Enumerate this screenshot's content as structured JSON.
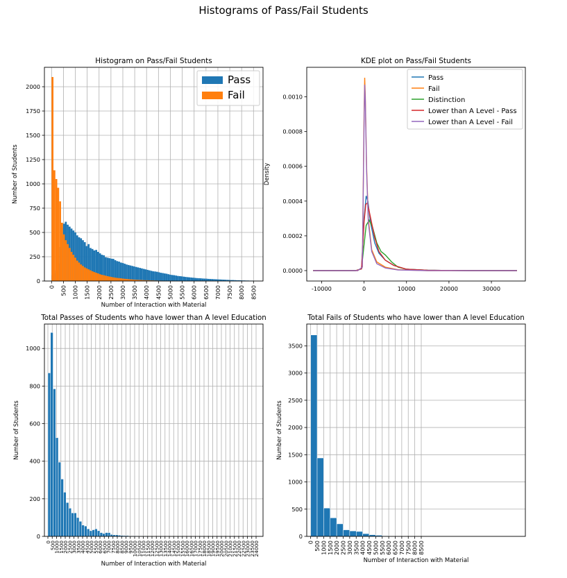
{
  "figure": {
    "suptitle": "Histograms of Pass/Fail Students"
  },
  "colors": {
    "pass": "#1f77b4",
    "fail": "#ff7f0e",
    "distinction": "#2ca02c",
    "lower_pass": "#d62728",
    "lower_fail": "#9467bd",
    "grid": "#b0b0b0"
  },
  "chart_data": [
    {
      "type": "bar",
      "title": "Histogram on Pass/Fail Students",
      "xlabel": "Number of Interaction with Material",
      "ylabel": "Number of Students",
      "xlim": [
        -300,
        8900
      ],
      "ylim": [
        0,
        2200
      ],
      "bin_width": 80,
      "xticks": [
        0,
        500,
        1000,
        1500,
        2000,
        2500,
        3000,
        3500,
        4000,
        4500,
        5000,
        5500,
        6000,
        6500,
        7000,
        7500,
        8000,
        8500
      ],
      "yticks": [
        0,
        250,
        500,
        750,
        1000,
        1250,
        1500,
        1750,
        2000
      ],
      "legend": {
        "location": "upper right",
        "entries": [
          "Pass",
          "Fail"
        ]
      },
      "grid": true,
      "series": [
        {
          "name": "Pass",
          "x": [
            0,
            80,
            160,
            240,
            320,
            400,
            480,
            560,
            640,
            720,
            800,
            880,
            960,
            1040,
            1120,
            1200,
            1280,
            1360,
            1440,
            1520,
            1600,
            1680,
            1760,
            1840,
            1920,
            2000,
            2080,
            2160,
            2240,
            2320,
            2400,
            2480,
            2560,
            2640,
            2720,
            2800,
            2880,
            2960,
            3040,
            3120,
            3200,
            3280,
            3360,
            3440,
            3520,
            3600,
            3680,
            3760,
            3840,
            3920,
            4000,
            4080,
            4160,
            4240,
            4320,
            4400,
            4480,
            4560,
            4640,
            4720,
            4800,
            4880,
            4960,
            5040,
            5120,
            5200,
            5280,
            5360,
            5440,
            5520,
            5600,
            5680,
            5760,
            5840,
            5920,
            6000,
            6080,
            6160,
            6240,
            6320,
            6400,
            6480,
            6560,
            6640,
            6720,
            6800,
            6880,
            6960,
            7040,
            7120,
            7200,
            7280,
            7360,
            7440,
            7520,
            7600,
            7680,
            7760,
            7840,
            7920,
            8000,
            8080,
            8160,
            8240,
            8320,
            8400,
            8480,
            8560,
            8640
          ],
          "values": [
            60,
            80,
            110,
            180,
            350,
            550,
            590,
            610,
            580,
            560,
            540,
            520,
            500,
            470,
            450,
            440,
            420,
            400,
            360,
            380,
            340,
            330,
            315,
            320,
            300,
            285,
            270,
            265,
            245,
            240,
            235,
            230,
            228,
            215,
            205,
            200,
            190,
            185,
            178,
            170,
            165,
            160,
            155,
            150,
            145,
            140,
            135,
            130,
            125,
            120,
            115,
            110,
            105,
            100,
            98,
            95,
            90,
            85,
            82,
            78,
            75,
            70,
            65,
            62,
            60,
            56,
            52,
            50,
            48,
            45,
            42,
            40,
            38,
            36,
            34,
            32,
            30,
            29,
            28,
            26,
            25,
            24,
            22,
            21,
            20,
            19,
            18,
            17,
            16,
            15,
            14,
            13,
            12,
            11,
            10,
            10,
            9,
            8,
            8,
            7,
            6,
            6,
            5,
            5,
            4,
            4,
            3,
            3,
            2
          ]
        },
        {
          "name": "Fail",
          "x": [
            0,
            80,
            160,
            240,
            320,
            400,
            480,
            560,
            640,
            720,
            800,
            880,
            960,
            1040,
            1120,
            1200,
            1280,
            1360,
            1440,
            1520,
            1600,
            1680,
            1760,
            1840,
            1920,
            2000,
            2080,
            2160,
            2240,
            2320,
            2400,
            2480,
            2560,
            2640,
            2720,
            2800,
            2880,
            2960,
            3040,
            3120,
            3200,
            3280,
            3360,
            3440,
            3520,
            3600,
            3680,
            3760,
            3840,
            3920,
            4000,
            4080,
            4160,
            4240,
            4320,
            4400,
            4480,
            4560,
            4640,
            4720,
            4800,
            4880,
            4960,
            5040,
            5120
          ],
          "values": [
            2100,
            1140,
            1050,
            960,
            820,
            600,
            480,
            420,
            380,
            340,
            300,
            270,
            240,
            210,
            190,
            170,
            155,
            140,
            130,
            120,
            110,
            100,
            92,
            85,
            78,
            70,
            64,
            60,
            55,
            50,
            46,
            42,
            38,
            35,
            32,
            30,
            28,
            25,
            23,
            21,
            19,
            17,
            16,
            14,
            13,
            12,
            11,
            10,
            9,
            8,
            8,
            7,
            6,
            6,
            5,
            5,
            4,
            4,
            3,
            3,
            3,
            2,
            2,
            2,
            2
          ]
        }
      ]
    },
    {
      "type": "line",
      "title": "KDE plot on Pass/Fail Students",
      "xlabel": "",
      "ylabel": "Density",
      "xlim": [
        -13500,
        38000
      ],
      "ylim": [
        -6e-05,
        0.00117
      ],
      "xticks": [
        -10000,
        0,
        10000,
        20000,
        30000
      ],
      "yticks": [
        0.0,
        0.0002,
        0.0004,
        0.0006,
        0.0008,
        0.001
      ],
      "ytick_labels": [
        "0.0000",
        "0.0002",
        "0.0004",
        "0.0006",
        "0.0008",
        "0.0010"
      ],
      "legend": {
        "location": "upper right",
        "entries": [
          "Pass",
          "Fail",
          "Distinction",
          "Lower than A Level - Pass",
          "Lower than A Level - Fail"
        ]
      },
      "grid": false,
      "series": [
        {
          "name": "Pass",
          "x": [
            -12000,
            -2000,
            -600,
            0,
            500,
            900,
            1500,
            2500,
            3500,
            5000,
            7000,
            10000,
            15000,
            25000,
            36000
          ],
          "values": [
            0,
            0,
            1e-05,
            0.0003,
            0.00043,
            0.0004,
            0.00028,
            0.00016,
            0.0001,
            6e-05,
            3e-05,
            8e-06,
            2e-06,
            0,
            0
          ]
        },
        {
          "name": "Fail",
          "x": [
            -12000,
            -1500,
            -400,
            0,
            150,
            300,
            600,
            1000,
            1800,
            3000,
            5000,
            8000,
            15000,
            25000,
            36000
          ],
          "values": [
            0,
            0,
            2e-05,
            0.0009,
            0.00111,
            0.001,
            0.0006,
            0.0003,
            0.00012,
            5e-05,
            2e-05,
            5e-06,
            0,
            0,
            0
          ]
        },
        {
          "name": "Distinction",
          "x": [
            -12000,
            -2000,
            -600,
            0,
            500,
            1200,
            2000,
            3000,
            4000,
            5000,
            6500,
            8000,
            10000,
            15000,
            25000,
            36000
          ],
          "values": [
            0,
            0,
            1e-05,
            0.00015,
            0.00026,
            0.00029,
            0.00025,
            0.00016,
            0.00011,
            9e-05,
            5e-05,
            2e-05,
            8e-06,
            2e-06,
            0,
            0
          ]
        },
        {
          "name": "Lower than A Level - Pass",
          "x": [
            -12000,
            -2000,
            -600,
            0,
            400,
            800,
            1400,
            2500,
            3500,
            5000,
            7000,
            10000,
            15000,
            25000,
            36000
          ],
          "values": [
            0,
            0,
            1e-05,
            0.00028,
            0.00038,
            0.00039,
            0.00032,
            0.00019,
            0.00011,
            6e-05,
            3e-05,
            8e-06,
            2e-06,
            0,
            0
          ]
        },
        {
          "name": "Lower than A Level - Fail",
          "x": [
            -12000,
            -1500,
            -400,
            0,
            150,
            300,
            600,
            1000,
            1800,
            3000,
            5000,
            8000,
            15000,
            25000,
            36000
          ],
          "values": [
            0,
            0,
            2e-05,
            0.00085,
            0.00107,
            0.00098,
            0.00058,
            0.00028,
            0.00011,
            4e-05,
            1.5e-05,
            4e-06,
            0,
            0,
            0
          ]
        }
      ]
    },
    {
      "type": "bar",
      "title": "Total Passes of Students who have lower than A level Education",
      "xlabel": "Number of Interaction with Material",
      "ylabel": "Number of Students",
      "xlim": [
        -400,
        24800
      ],
      "ylim": [
        0,
        1130
      ],
      "bin_width": 300,
      "xticks": [
        0,
        500,
        1000,
        1500,
        2000,
        2500,
        3000,
        3500,
        4000,
        4500,
        5000,
        5500,
        6000,
        6500,
        7000,
        7500,
        8000,
        8500,
        9000,
        9500,
        10000,
        10500,
        11000,
        11500,
        12000,
        12500,
        13000,
        13500,
        14000,
        14500,
        15000,
        15500,
        16000,
        16500,
        17000,
        17500,
        18000,
        18500,
        19000,
        19500,
        20000,
        20500,
        21000,
        21500,
        22000,
        22500,
        23000,
        23500,
        24000
      ],
      "yticks": [
        0,
        200,
        400,
        600,
        800,
        1000
      ],
      "grid": true,
      "series": [
        {
          "name": "",
          "x": [
            0,
            300,
            600,
            900,
            1200,
            1500,
            1800,
            2100,
            2400,
            2700,
            3000,
            3300,
            3600,
            3900,
            4200,
            4500,
            4800,
            5100,
            5400,
            5700,
            6000,
            6300,
            6600,
            6900,
            7200,
            7500,
            7800,
            8100,
            8400,
            8700,
            9000,
            9300,
            9600,
            9900,
            10200,
            10500,
            10800,
            11100,
            11400,
            11700,
            12000,
            12300,
            12600,
            12900,
            13200,
            13500,
            13800,
            14100,
            14400,
            14700,
            15000,
            15300,
            15600,
            15900,
            16200,
            16500,
            16800,
            17100,
            17400,
            17700,
            18000,
            18300,
            18600,
            18900,
            19200,
            19500,
            19800
          ],
          "values": [
            870,
            1085,
            785,
            525,
            395,
            305,
            235,
            180,
            150,
            125,
            125,
            100,
            80,
            60,
            55,
            40,
            30,
            35,
            40,
            30,
            20,
            15,
            20,
            20,
            10,
            8,
            8,
            6,
            5,
            4,
            4,
            3,
            3,
            3,
            2,
            2,
            2,
            2,
            1,
            1,
            1,
            1,
            1,
            1,
            1,
            1,
            1,
            1,
            1,
            1,
            1,
            1,
            1,
            1,
            1,
            1,
            1,
            1,
            1,
            1,
            1,
            1,
            1,
            1,
            1,
            1,
            1
          ]
        }
      ]
    },
    {
      "type": "bar",
      "title": "Total Fails of Students who have lower than A level Education",
      "xlabel": "Number of Interaction with Material",
      "ylabel": "Number of Students",
      "xlim": [
        -300,
        16500
      ],
      "ylim": [
        0,
        3900
      ],
      "bin_width": 500,
      "xticks": [
        0,
        500,
        1000,
        1500,
        2000,
        2500,
        3000,
        3500,
        4000,
        4500,
        5000,
        5500,
        6000,
        6500,
        7000,
        7500,
        8000,
        8500
      ],
      "yticks": [
        0,
        500,
        1000,
        1500,
        2000,
        2500,
        3000,
        3500
      ],
      "grid": true,
      "series": [
        {
          "name": "",
          "x": [
            0,
            500,
            1000,
            1500,
            2000,
            2500,
            3000,
            3500,
            4000,
            4500,
            5000,
            5500
          ],
          "values": [
            3700,
            1440,
            520,
            340,
            230,
            120,
            100,
            90,
            50,
            30,
            20,
            10
          ]
        }
      ]
    }
  ]
}
